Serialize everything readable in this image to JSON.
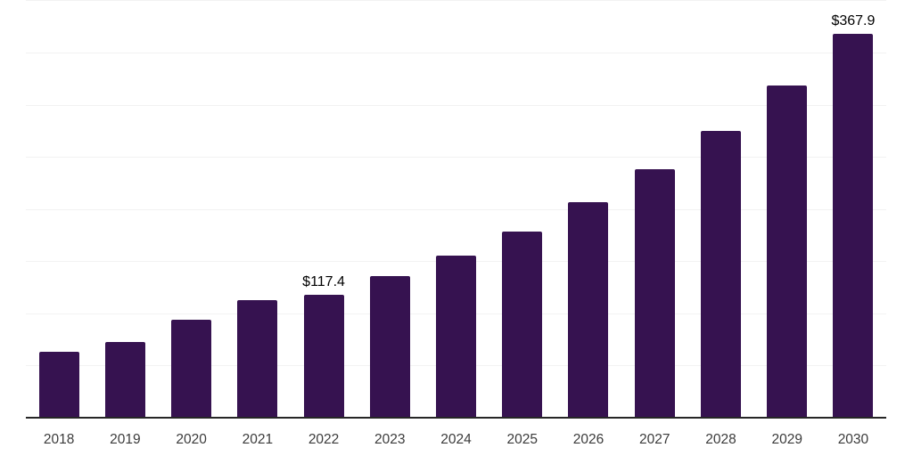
{
  "chart_data": {
    "type": "bar",
    "title": "",
    "xlabel": "",
    "ylabel": "",
    "categories": [
      "2018",
      "2019",
      "2020",
      "2021",
      "2022",
      "2023",
      "2024",
      "2025",
      "2026",
      "2027",
      "2028",
      "2029",
      "2030"
    ],
    "values": [
      63.2,
      72.8,
      93.7,
      112.7,
      117.4,
      135.7,
      155.6,
      178.4,
      206.4,
      238.2,
      274.6,
      318.7,
      367.9
    ],
    "data_labels": [
      "",
      "",
      "",
      "",
      "$117.4",
      "",
      "",
      "",
      "",
      "",
      "",
      "",
      "$367.9"
    ],
    "currency_prefix": "$",
    "ylim": [
      0,
      400
    ],
    "gridline_interval": 50,
    "grid": "horizontal",
    "legend_position": "none",
    "colors": {
      "bar": "#361250",
      "gridline": "#f2f2f2",
      "axis_line": "#262626",
      "tick_label": "#3b3b3b",
      "data_label": "#000000",
      "background": "#ffffff"
    }
  }
}
